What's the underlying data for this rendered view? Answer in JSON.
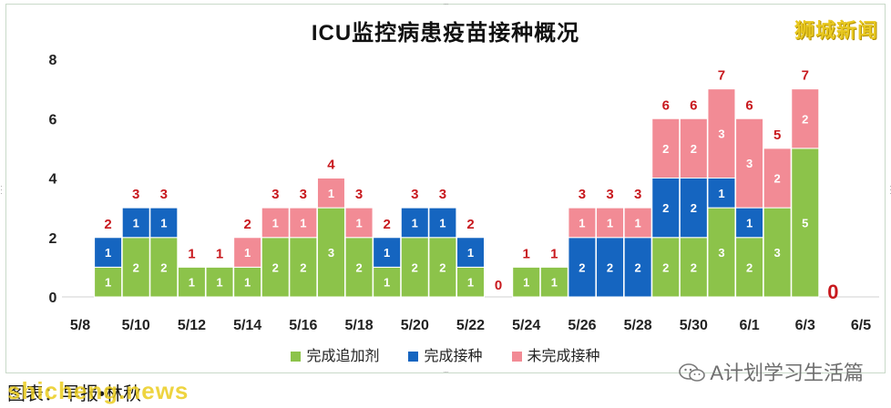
{
  "title": "ICU监控病患疫苗接种概况",
  "brand": "狮城新闻",
  "source": "图表：早报•林秋",
  "watermark_site": "shicheng.news",
  "wechat_account": "A计划学习生活篇",
  "chart_data": {
    "type": "bar",
    "stacked": true,
    "ylim": [
      0,
      8
    ],
    "yticks": [
      0,
      2,
      4,
      6,
      8
    ],
    "xlabel": "",
    "ylabel": "",
    "grid": false,
    "legend_position": "bottom",
    "categories": [
      "5/8",
      "5/9",
      "5/10",
      "5/11",
      "5/12",
      "5/13",
      "5/14",
      "5/15",
      "5/16",
      "5/17",
      "5/18",
      "5/19",
      "5/20",
      "5/21",
      "5/22",
      "5/23",
      "5/24",
      "5/25",
      "5/26",
      "5/27",
      "5/28",
      "5/29",
      "5/30",
      "5/31",
      "6/1",
      "6/2",
      "6/3",
      "6/4",
      "6/5"
    ],
    "x_tick_labels": [
      "5/8",
      "5/10",
      "5/12",
      "5/14",
      "5/16",
      "5/18",
      "5/20",
      "5/22",
      "5/24",
      "5/26",
      "5/28",
      "5/30",
      "6/1",
      "6/3",
      "6/5"
    ],
    "series": [
      {
        "name": "完成追加剂",
        "color": "#8cc34a",
        "values": [
          null,
          1,
          2,
          2,
          1,
          1,
          1,
          2,
          2,
          3,
          2,
          1,
          2,
          2,
          1,
          0,
          1,
          1,
          0,
          0,
          0,
          2,
          2,
          3,
          2,
          3,
          5,
          0,
          null
        ]
      },
      {
        "name": "完成接种",
        "color": "#1565c0",
        "values": [
          null,
          1,
          1,
          1,
          0,
          0,
          0,
          0,
          0,
          0,
          0,
          1,
          1,
          1,
          1,
          0,
          0,
          0,
          2,
          2,
          2,
          2,
          2,
          1,
          1,
          0,
          0,
          0,
          null
        ]
      },
      {
        "name": "未完成接种",
        "color": "#f28b95",
        "values": [
          null,
          0,
          0,
          0,
          0,
          0,
          1,
          1,
          1,
          1,
          1,
          0,
          0,
          0,
          0,
          0,
          0,
          0,
          1,
          1,
          1,
          2,
          2,
          3,
          3,
          2,
          2,
          0,
          null
        ]
      }
    ],
    "totals": [
      null,
      2,
      3,
      3,
      1,
      1,
      2,
      3,
      3,
      4,
      3,
      2,
      3,
      3,
      2,
      0,
      1,
      1,
      3,
      3,
      3,
      6,
      6,
      7,
      6,
      5,
      7,
      0,
      null
    ]
  }
}
